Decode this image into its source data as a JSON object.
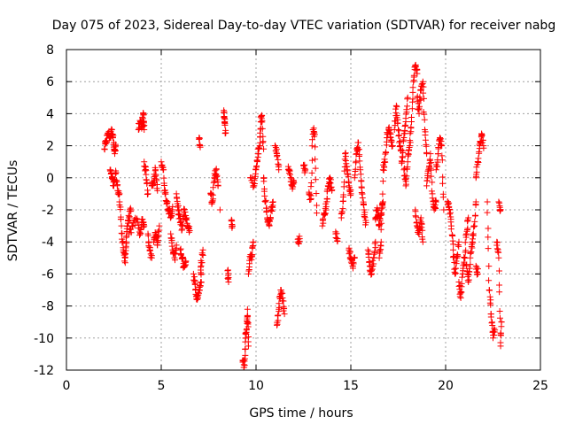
{
  "chart_data": {
    "type": "scatter",
    "title": "Day 075 of 2023, Sidereal Day-to-day VTEC variation (SDTVAR) for receiver nabg",
    "xlabel": "GPS time / hours",
    "ylabel": "SDTVAR / TECUs",
    "xlim": [
      0,
      25
    ],
    "ylim": [
      -12,
      8
    ],
    "xticks": [
      0,
      5,
      10,
      15,
      20,
      25
    ],
    "yticks": [
      8,
      6,
      4,
      2,
      0,
      -2,
      -4,
      -6,
      -8,
      -10,
      -12
    ],
    "grid": true,
    "marker": "+",
    "colors": {
      "series": "#ff0000",
      "grid": "#a0a0a0",
      "axis": "#000000"
    },
    "series": [
      {
        "name": "SDTVAR",
        "segments": [
          [
            [
              2.0,
              1.8
            ],
            [
              2.1,
              2.3
            ],
            [
              2.2,
              2.8
            ],
            [
              2.3,
              2.5
            ],
            [
              2.4,
              3.0
            ],
            [
              2.5,
              2.2
            ],
            [
              2.55,
              1.5
            ],
            [
              2.6,
              2.0
            ]
          ],
          [
            [
              2.3,
              0.5
            ],
            [
              2.4,
              0.0
            ],
            [
              2.5,
              -0.5
            ],
            [
              2.6,
              0.3
            ],
            [
              2.7,
              -0.8
            ],
            [
              2.8,
              -1.0
            ]
          ],
          [
            [
              2.8,
              -1.5
            ],
            [
              2.9,
              -3.0
            ],
            [
              3.0,
              -4.5
            ],
            [
              3.1,
              -5.3
            ],
            [
              3.15,
              -4.0
            ],
            [
              3.2,
              -3.0
            ],
            [
              3.3,
              -2.5
            ],
            [
              3.4,
              -2.0
            ]
          ],
          [
            [
              3.3,
              -3.5
            ],
            [
              3.5,
              -3.0
            ],
            [
              3.7,
              -2.6
            ],
            [
              3.9,
              -3.5
            ],
            [
              4.0,
              -2.6
            ],
            [
              4.1,
              -3.0
            ]
          ],
          [
            [
              3.8,
              3.0
            ],
            [
              3.9,
              3.5
            ],
            [
              4.0,
              3.2
            ],
            [
              4.05,
              4.0
            ],
            [
              4.1,
              3.0
            ]
          ],
          [
            [
              4.1,
              1.0
            ],
            [
              4.2,
              0.2
            ],
            [
              4.3,
              -1.0
            ]
          ],
          [
            [
              4.3,
              -3.5
            ],
            [
              4.4,
              -4.5
            ],
            [
              4.5,
              -5.0
            ]
          ],
          [
            [
              4.5,
              -0.5
            ],
            [
              4.6,
              -0.2
            ],
            [
              4.7,
              0.5
            ],
            [
              4.8,
              -0.8
            ]
          ],
          [
            [
              4.6,
              -4.0
            ],
            [
              4.7,
              -3.5
            ],
            [
              4.8,
              -4.2
            ],
            [
              4.9,
              -3.0
            ]
          ],
          [
            [
              5.0,
              1.0
            ],
            [
              5.1,
              0.5
            ],
            [
              5.2,
              -1.0
            ],
            [
              5.3,
              -1.5
            ],
            [
              5.4,
              -2.0
            ],
            [
              5.5,
              -2.5
            ],
            [
              5.6,
              -1.8
            ]
          ],
          [
            [
              5.5,
              -3.5
            ],
            [
              5.6,
              -4.5
            ],
            [
              5.7,
              -5.0
            ],
            [
              5.8,
              -4.2
            ]
          ],
          [
            [
              5.8,
              -1.0
            ],
            [
              5.9,
              -2.0
            ],
            [
              6.0,
              -2.8
            ],
            [
              6.1,
              -3.2
            ],
            [
              6.2,
              -2.0
            ],
            [
              6.3,
              -2.6
            ],
            [
              6.4,
              -3.0
            ],
            [
              6.5,
              -3.3
            ]
          ],
          [
            [
              6.0,
              -4.5
            ],
            [
              6.1,
              -5.0
            ],
            [
              6.2,
              -5.5
            ],
            [
              6.3,
              -5.2
            ]
          ],
          [
            [
              6.7,
              -6.0
            ],
            [
              6.8,
              -7.0
            ],
            [
              6.9,
              -7.6
            ],
            [
              7.0,
              -7.0
            ],
            [
              7.1,
              -6.5
            ],
            [
              7.1,
              -5.5
            ],
            [
              7.2,
              -4.5
            ]
          ],
          [
            [
              7.0,
              2.5
            ],
            [
              7.05,
              2.0
            ]
          ],
          [
            [
              7.6,
              -1.0
            ],
            [
              7.7,
              -1.5
            ],
            [
              7.8,
              0.0
            ],
            [
              7.9,
              0.5
            ],
            [
              8.0,
              -0.5
            ]
          ],
          [
            [
              8.1,
              -2.0
            ]
          ],
          [
            [
              8.3,
              4.2
            ],
            [
              8.35,
              3.5
            ],
            [
              8.4,
              2.8
            ]
          ],
          [
            [
              8.5,
              -5.8
            ],
            [
              8.55,
              -6.5
            ]
          ],
          [
            [
              8.7,
              -2.7
            ],
            [
              8.75,
              -3.0
            ]
          ],
          [
            [
              9.3,
              -11.5
            ],
            [
              9.4,
              -11.7
            ],
            [
              9.45,
              -10.0
            ],
            [
              9.5,
              -9.5
            ],
            [
              9.55,
              -8.2
            ],
            [
              9.6,
              -10.5
            ]
          ],
          [
            [
              9.6,
              -6.0
            ],
            [
              9.7,
              -5.0
            ],
            [
              9.8,
              -4.8
            ],
            [
              9.85,
              -4.0
            ]
          ],
          [
            [
              9.7,
              0.0
            ],
            [
              9.9,
              -0.5
            ],
            [
              10.0,
              0.5
            ],
            [
              10.1,
              1.5
            ],
            [
              10.2,
              2.0
            ],
            [
              10.25,
              3.5
            ],
            [
              10.3,
              3.9
            ],
            [
              10.4,
              1.8
            ]
          ],
          [
            [
              10.4,
              0.0
            ],
            [
              10.5,
              -1.5
            ],
            [
              10.6,
              -2.5
            ],
            [
              10.7,
              -3.0
            ],
            [
              10.8,
              -2.0
            ],
            [
              10.9,
              -1.5
            ]
          ],
          [
            [
              11.0,
              2.0
            ],
            [
              11.1,
              1.5
            ],
            [
              11.2,
              0.5
            ]
          ],
          [
            [
              11.1,
              -9.2
            ],
            [
              11.2,
              -8.2
            ],
            [
              11.3,
              -7.0
            ],
            [
              11.4,
              -7.5
            ],
            [
              11.5,
              -8.5
            ]
          ],
          [
            [
              11.7,
              0.7
            ],
            [
              11.8,
              0.2
            ],
            [
              11.9,
              -0.5
            ],
            [
              12.0,
              -0.3
            ]
          ],
          [
            [
              12.2,
              -4.0
            ],
            [
              12.3,
              -3.8
            ]
          ],
          [
            [
              12.5,
              0.8
            ],
            [
              12.6,
              0.5
            ]
          ],
          [
            [
              12.8,
              -1.0
            ],
            [
              12.9,
              -1.3
            ],
            [
              13.0,
              3.0
            ],
            [
              13.1,
              2.7
            ],
            [
              13.2,
              -2.2
            ]
          ],
          [
            [
              13.5,
              -3.0
            ],
            [
              13.6,
              -2.3
            ],
            [
              13.7,
              -1.8
            ],
            [
              13.8,
              -0.5
            ],
            [
              13.9,
              0.0
            ],
            [
              14.0,
              -0.8
            ]
          ],
          [
            [
              14.2,
              -3.5
            ],
            [
              14.3,
              -3.8
            ]
          ],
          [
            [
              14.5,
              -2.5
            ],
            [
              14.6,
              -1.2
            ],
            [
              14.7,
              1.5
            ],
            [
              14.8,
              0.5
            ],
            [
              14.9,
              -0.5
            ],
            [
              15.0,
              -1.0
            ]
          ],
          [
            [
              14.9,
              -4.5
            ],
            [
              15.0,
              -5.0
            ],
            [
              15.1,
              -5.5
            ],
            [
              15.2,
              -5.0
            ]
          ],
          [
            [
              15.2,
              0.0
            ],
            [
              15.3,
              1.5
            ],
            [
              15.4,
              2.2
            ],
            [
              15.5,
              0.5
            ],
            [
              15.6,
              -1.0
            ],
            [
              15.7,
              -2.0
            ],
            [
              15.8,
              -2.8
            ]
          ],
          [
            [
              15.9,
              -4.5
            ],
            [
              16.0,
              -5.5
            ],
            [
              16.1,
              -6.0
            ],
            [
              16.2,
              -5.0
            ],
            [
              16.3,
              -4.0
            ]
          ],
          [
            [
              16.3,
              -2.5
            ],
            [
              16.4,
              -2.0
            ],
            [
              16.5,
              -3.0
            ],
            [
              16.6,
              -2.2
            ],
            [
              16.7,
              -1.5
            ]
          ],
          [
            [
              16.5,
              -5.0
            ],
            [
              16.6,
              -4.0
            ],
            [
              16.7,
              0.5
            ],
            [
              16.8,
              1.0
            ],
            [
              16.9,
              2.5
            ],
            [
              17.0,
              3.0
            ],
            [
              17.1,
              2.5
            ],
            [
              17.2,
              2.0
            ]
          ],
          [
            [
              17.3,
              3.0
            ],
            [
              17.4,
              4.5
            ],
            [
              17.5,
              3.0
            ],
            [
              17.6,
              2.0
            ],
            [
              17.7,
              1.0
            ],
            [
              17.8,
              2.5
            ],
            [
              17.9,
              3.5
            ],
            [
              18.0,
              5.0
            ]
          ],
          [
            [
              17.8,
              0.5
            ],
            [
              17.9,
              -0.5
            ],
            [
              18.0,
              1.0
            ],
            [
              18.1,
              2.0
            ],
            [
              18.2,
              3.5
            ],
            [
              18.3,
              6.0
            ],
            [
              18.4,
              7.0
            ],
            [
              18.5,
              6.5
            ]
          ],
          [
            [
              18.4,
              -2.0
            ],
            [
              18.5,
              -3.0
            ],
            [
              18.6,
              -3.5
            ],
            [
              18.7,
              -2.5
            ],
            [
              18.8,
              -4.0
            ]
          ],
          [
            [
              18.5,
              5.0
            ],
            [
              18.6,
              4.0
            ],
            [
              18.7,
              5.5
            ],
            [
              18.8,
              6.0
            ],
            [
              18.9,
              3.0
            ],
            [
              19.0,
              1.5
            ]
          ],
          [
            [
              19.0,
              -0.5
            ],
            [
              19.1,
              0.5
            ],
            [
              19.2,
              1.5
            ],
            [
              19.3,
              -1.0
            ],
            [
              19.4,
              -2.0
            ],
            [
              19.5,
              -1.5
            ]
          ],
          [
            [
              19.5,
              0.5
            ],
            [
              19.6,
              1.5
            ],
            [
              19.7,
              2.5
            ],
            [
              19.8,
              2.0
            ],
            [
              19.9,
              -2.0
            ]
          ],
          [
            [
              20.1,
              -1.5
            ],
            [
              20.2,
              -2.0
            ],
            [
              20.3,
              -3.0
            ],
            [
              20.4,
              -4.5
            ],
            [
              20.5,
              -6.0
            ],
            [
              20.6,
              -5.0
            ],
            [
              20.7,
              -4.0
            ]
          ],
          [
            [
              20.7,
              -6.5
            ],
            [
              20.8,
              -7.5
            ],
            [
              20.9,
              -6.0
            ],
            [
              21.0,
              -5.0
            ],
            [
              21.1,
              -3.5
            ],
            [
              21.2,
              -2.5
            ]
          ],
          [
            [
              21.1,
              -5.5
            ],
            [
              21.2,
              -6.5
            ],
            [
              21.3,
              -5.0
            ],
            [
              21.4,
              -4.0
            ],
            [
              21.5,
              -3.0
            ],
            [
              21.6,
              -1.5
            ]
          ],
          [
            [
              21.6,
              0.0
            ],
            [
              21.7,
              1.0
            ],
            [
              21.8,
              2.0
            ],
            [
              21.9,
              2.7
            ],
            [
              22.0,
              2.0
            ]
          ],
          [
            [
              21.6,
              -5.5
            ],
            [
              21.7,
              -6.0
            ]
          ],
          [
            [
              22.2,
              -1.5
            ],
            [
              22.3,
              -7.0
            ],
            [
              22.4,
              -8.5
            ],
            [
              22.5,
              -10.0
            ],
            [
              22.6,
              -9.5
            ]
          ],
          [
            [
              22.7,
              -4.0
            ],
            [
              22.8,
              -5.0
            ],
            [
              22.9,
              -10.5
            ],
            [
              22.95,
              -9.0
            ]
          ],
          [
            [
              22.8,
              -1.5
            ],
            [
              22.9,
              -2.0
            ]
          ]
        ]
      }
    ]
  }
}
